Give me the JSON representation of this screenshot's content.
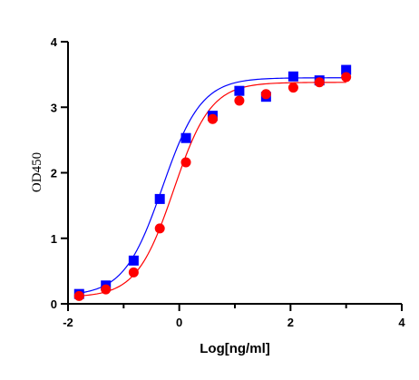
{
  "chart_data": {
    "type": "scatter",
    "title": "",
    "xlabel": "Log[ng/ml]",
    "ylabel": "OD450",
    "xlim": [
      -2,
      4
    ],
    "ylim": [
      0,
      4
    ],
    "xticks": [
      "-2",
      "0",
      "2",
      "4"
    ],
    "yticks": [
      "0",
      "1",
      "2",
      "3",
      "4"
    ],
    "grid": false,
    "legend": "none",
    "series": [
      {
        "color": "#0000ff",
        "marker": "square",
        "fit": "four-parameter-logistic",
        "x": [
          -1.8,
          -1.32,
          -0.82,
          -0.35,
          0.12,
          0.6,
          1.08,
          1.56,
          2.05,
          2.52,
          3.0
        ],
        "y": [
          0.15,
          0.28,
          0.66,
          1.6,
          2.53,
          2.87,
          3.25,
          3.16,
          3.47,
          3.41,
          3.57
        ],
        "fit_params": {
          "bottom": 0.12,
          "top": 3.45,
          "logEC50": -0.3,
          "hill": 1.25
        }
      },
      {
        "color": "#ff0000",
        "marker": "circle",
        "fit": "four-parameter-logistic",
        "x": [
          -1.8,
          -1.32,
          -0.82,
          -0.35,
          0.12,
          0.6,
          1.08,
          1.56,
          2.05,
          2.52,
          3.0
        ],
        "y": [
          0.12,
          0.22,
          0.48,
          1.15,
          2.16,
          2.82,
          3.1,
          3.2,
          3.3,
          3.38,
          3.46
        ],
        "fit_params": {
          "bottom": 0.1,
          "top": 3.38,
          "logEC50": -0.1,
          "hill": 1.3
        }
      }
    ]
  }
}
